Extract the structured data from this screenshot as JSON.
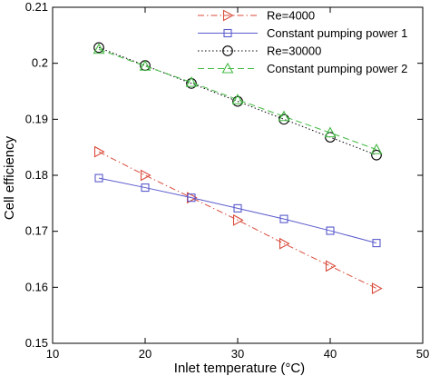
{
  "chart_data": {
    "type": "line",
    "xlabel": "Inlet temperature (°C)",
    "ylabel": "Cell efficiency",
    "xlim": [
      10,
      50
    ],
    "ylim": [
      0.15,
      0.21
    ],
    "xticks": [
      "10",
      "20",
      "30",
      "40",
      "50"
    ],
    "yticks": [
      "0.15",
      "0.16",
      "0.17",
      "0.18",
      "0.19",
      "0.2",
      "0.21"
    ],
    "x": [
      15,
      20,
      25,
      30,
      35,
      40,
      45
    ],
    "legend_position": "top-right",
    "grid": false,
    "series": [
      {
        "name": "Re=4000",
        "values": [
          0.1842,
          0.18,
          0.176,
          0.172,
          0.1678,
          0.1638,
          0.1598
        ],
        "color": "#d94a3a",
        "line": "dashdot",
        "marker": "triangle-right"
      },
      {
        "name": "Constant pumping power 1",
        "values": [
          0.1795,
          0.1778,
          0.176,
          0.1741,
          0.1722,
          0.1701,
          0.1679
        ],
        "color": "#5a5acd",
        "line": "solid",
        "marker": "square"
      },
      {
        "name": "Re=30000",
        "values": [
          0.2028,
          0.1996,
          0.1964,
          0.1932,
          0.19,
          0.1868,
          0.1836
        ],
        "color": "#000000",
        "line": "dotted",
        "marker": "circle"
      },
      {
        "name": "Constant pumping power 2",
        "values": [
          0.2025,
          0.1995,
          0.1966,
          0.1935,
          0.1905,
          0.1876,
          0.1846
        ],
        "color": "#44bb44",
        "line": "dashed",
        "marker": "triangle-up"
      }
    ]
  }
}
